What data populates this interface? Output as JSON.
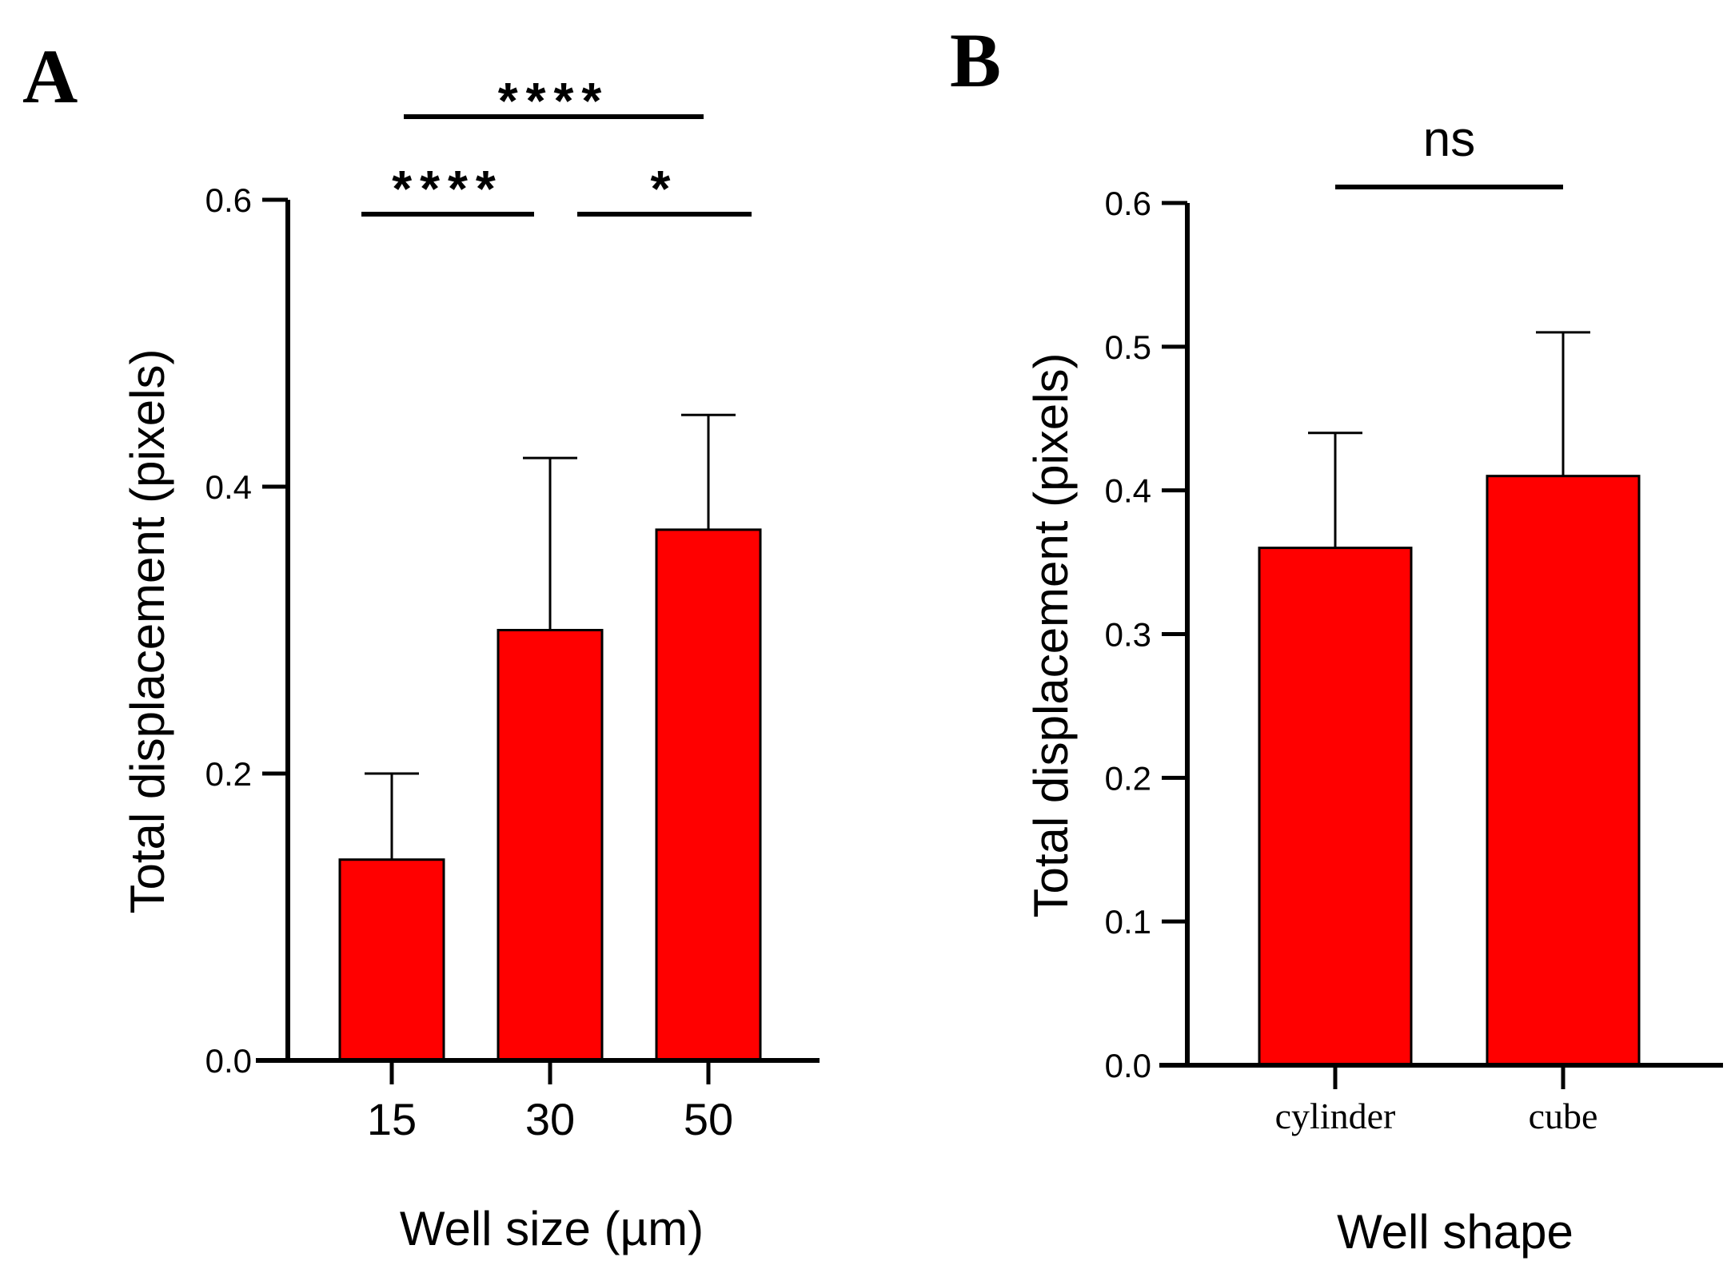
{
  "chart_data": [
    {
      "panel": "A",
      "type": "bar",
      "categories": [
        "15",
        "30",
        "50"
      ],
      "values": [
        0.14,
        0.3,
        0.37
      ],
      "error_upper": [
        0.2,
        0.42,
        0.45
      ],
      "xlabel": "Well size (µm)",
      "ylabel": "Total displacement (pixels)",
      "ylim": [
        0,
        0.6
      ],
      "yticks": [
        "0.0",
        "0.2",
        "0.4",
        "0.6"
      ],
      "bar_color": "#ff0000",
      "significance": [
        {
          "from": "15",
          "to": "30",
          "label": "****"
        },
        {
          "from": "30",
          "to": "50",
          "label": "*"
        },
        {
          "from": "15",
          "to": "50",
          "label": "****"
        }
      ]
    },
    {
      "panel": "B",
      "type": "bar",
      "categories": [
        "cylinder",
        "cube"
      ],
      "values": [
        0.36,
        0.41
      ],
      "error_upper": [
        0.44,
        0.51
      ],
      "xlabel": "Well shape",
      "ylabel": "Total displacement (pixels)",
      "ylim": [
        0,
        0.6
      ],
      "yticks": [
        "0.0",
        "0.1",
        "0.2",
        "0.3",
        "0.4",
        "0.5",
        "0.6"
      ],
      "bar_color": "#ff0000",
      "significance": [
        {
          "from": "cylinder",
          "to": "cube",
          "label": "ns"
        }
      ]
    }
  ]
}
